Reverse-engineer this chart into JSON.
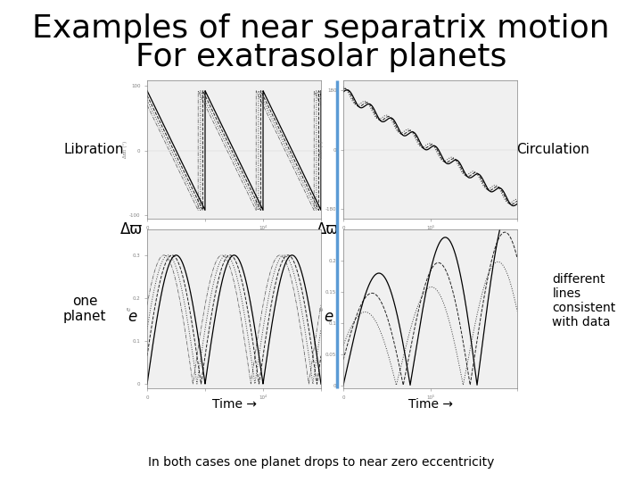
{
  "title_line1": "Examples of near separatrix motion",
  "title_line2": "For exatrasolar planets",
  "title_fontsize": 26,
  "title_fontweight": "normal",
  "bg_color": "#ffffff",
  "label_libration": "Libration",
  "label_circulation": "Circulation",
  "label_one_planet": "one\nplanet",
  "label_delta_varpi_left": "Δϖ",
  "label_delta_varpi_right": "Δϖ",
  "label_e_left": "e",
  "label_e_right": "e",
  "label_time_left": "Time →",
  "label_time_right": "Time →",
  "label_different": "different\nlines\nconsistent\nwith data",
  "footer": "In both cases one planet drops to near zero eccentricity",
  "divider_color": "#5b9bd5",
  "panel_gray": "#d8d8d8"
}
